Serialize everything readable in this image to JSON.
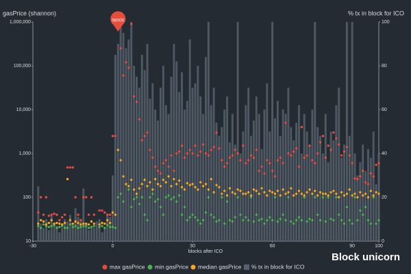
{
  "chart_data": {
    "type": "bar_scatter",
    "y_label": "gasPrice (shannon)",
    "y2_label": "% tx in block for ICO",
    "x_label": "blocks after ICO",
    "watermark": "Block unicorn",
    "annotation": {
      "text": "58000",
      "x": 2,
      "y": 1000000
    },
    "log_y": true,
    "xlim": [
      -30,
      100
    ],
    "xticks": [
      -30,
      0,
      30,
      60,
      90,
      100
    ],
    "ylim": [
      10,
      1000000
    ],
    "yticks": [
      10,
      100,
      {
        "value": 1000,
        "label": "1,000"
      },
      {
        "value": 10000,
        "label": "10,000"
      },
      {
        "value": 100000,
        "label": "100,000"
      },
      {
        "value": 1000000,
        "label": "1,000,000"
      }
    ],
    "y2lim": [
      0,
      100
    ],
    "y2ticks": [
      0,
      20,
      40,
      60,
      80,
      100
    ],
    "x": [
      -30,
      -29,
      -28,
      -27,
      -26,
      -25,
      -24,
      -23,
      -22,
      -21,
      -20,
      -19,
      -18,
      -17,
      -16,
      -15,
      -14,
      -13,
      -12,
      -11,
      -10,
      -9,
      -8,
      -7,
      -6,
      -5,
      -4,
      -3,
      -2,
      -1,
      0,
      1,
      2,
      3,
      4,
      5,
      6,
      7,
      8,
      9,
      10,
      11,
      12,
      13,
      14,
      15,
      16,
      17,
      18,
      19,
      20,
      21,
      22,
      23,
      24,
      25,
      26,
      27,
      28,
      29,
      30,
      31,
      32,
      33,
      34,
      35,
      36,
      37,
      38,
      39,
      40,
      41,
      42,
      43,
      44,
      45,
      46,
      47,
      48,
      49,
      50,
      51,
      52,
      53,
      54,
      55,
      56,
      57,
      58,
      59,
      60,
      61,
      62,
      63,
      64,
      65,
      66,
      67,
      68,
      69,
      70,
      71,
      72,
      73,
      74,
      75,
      76,
      77,
      78,
      79,
      80,
      81,
      82,
      83,
      84,
      85,
      86,
      87,
      88,
      89,
      90,
      91,
      92,
      93,
      94,
      95,
      96,
      97,
      98,
      99,
      100
    ],
    "series": [
      {
        "name": "max gasPrice",
        "color": "#e84c3d",
        "kind": "scatter",
        "values": [
          null,
          null,
          45,
          100,
          40,
          100,
          38,
          40,
          42,
          40,
          30,
          35,
          40,
          480,
          480,
          480,
          100,
          40,
          30,
          100,
          100,
          40,
          100,
          40,
          null,
          50,
          50,
          45,
          40,
          40,
          2500,
          2500,
          1000000,
          250000,
          60000,
          120000,
          90000,
          900000,
          20000,
          15000,
          6000,
          2000,
          2500,
          3000,
          1200,
          800,
          500,
          400,
          350,
          600,
          700,
          500,
          900,
          400,
          1000,
          1100,
          1500,
          800,
          1000,
          1200,
          1000,
          1500,
          900,
          1100,
          1600,
          1000,
          900,
          1200,
          1400,
          3000,
          1300,
          700,
          500,
          600,
          800,
          900,
          1200,
          1000,
          700,
          1500,
          600,
          700,
          900,
          800,
          1200,
          400,
          500,
          350,
          700,
          600,
          400,
          300,
          700,
          800,
          600,
          5000,
          1000,
          900,
          1100,
          1300,
          500,
          4000,
          800,
          900,
          1500,
          700,
          600,
          1000,
          1800,
          2500,
          800,
          1500,
          1200,
          3000,
          2200,
          1600,
          900,
          1100,
          1400,
          900,
          600,
          270,
          260,
          300,
          400,
          220,
          200,
          350,
          300,
          550,
          600
        ]
      },
      {
        "name": "min gasPrice",
        "color": "#4caf50",
        "kind": "scatter",
        "values": [
          null,
          null,
          22,
          20,
          24,
          22,
          21,
          22,
          23,
          20,
          21,
          22,
          20,
          20,
          24,
          21,
          22,
          20,
          21,
          22,
          22,
          20,
          21,
          22,
          null,
          21,
          22,
          20,
          23,
          21,
          21,
          20,
          100,
          120,
          80,
          200,
          150,
          60,
          90,
          100,
          70,
          100,
          40,
          30,
          100,
          120,
          80,
          90,
          60,
          40,
          100,
          110,
          90,
          100,
          80,
          110,
          40,
          60,
          30,
          35,
          40,
          35,
          30,
          25,
          30,
          45,
          100,
          40,
          35,
          28,
          30,
          100,
          25,
          80,
          30,
          28,
          35,
          100,
          40,
          30,
          35,
          30,
          100,
          28,
          40,
          30,
          32,
          25,
          30,
          35,
          30,
          100,
          28,
          32,
          40,
          30,
          100,
          28,
          25,
          30,
          35,
          30,
          100,
          28,
          32,
          30,
          100,
          40,
          30,
          100,
          28,
          100,
          32,
          30,
          100,
          40,
          30,
          25,
          60,
          30,
          25,
          100,
          30,
          50,
          40,
          60,
          30,
          25,
          100,
          25,
          30
        ]
      },
      {
        "name": "median gasPrice",
        "color": "#f5a623",
        "kind": "scatter",
        "values": [
          null,
          null,
          25,
          30,
          28,
          24,
          26,
          30,
          25,
          26,
          25,
          24,
          26,
          260,
          30,
          25,
          28,
          26,
          24,
          25,
          25,
          24,
          28,
          25,
          null,
          24,
          26,
          25,
          30,
          26,
          45,
          40,
          1200,
          700,
          300,
          200,
          180,
          250,
          150,
          120,
          160,
          200,
          250,
          180,
          220,
          150,
          260,
          200,
          180,
          250,
          220,
          300,
          180,
          260,
          200,
          240,
          170,
          150,
          210,
          190,
          200,
          170,
          150,
          220,
          180,
          200,
          150,
          260,
          130,
          190,
          170,
          120,
          140,
          110,
          160,
          130,
          120,
          150,
          140,
          120,
          120,
          130,
          110,
          150,
          140,
          120,
          160,
          130,
          110,
          140,
          130,
          120,
          140,
          110,
          150,
          120,
          130,
          160,
          110,
          120,
          140,
          120,
          110,
          130,
          150,
          120,
          140,
          110,
          130,
          120,
          120,
          110,
          130,
          140,
          120,
          100,
          130,
          110,
          120,
          150,
          110,
          120,
          100,
          130,
          110,
          120,
          100,
          140,
          110,
          130,
          120
        ]
      },
      {
        "name": "% tx in block for ICO",
        "color": "#56616d",
        "kind": "bar",
        "axis": "y2",
        "values": [
          0,
          0,
          25,
          8,
          6,
          10,
          5,
          12,
          8,
          7,
          4,
          6,
          10,
          9,
          12,
          8,
          15,
          11,
          9,
          24,
          8,
          5,
          7,
          6,
          9,
          10,
          4,
          6,
          12,
          11,
          30,
          85,
          90,
          100,
          95,
          88,
          92,
          100,
          80,
          75,
          70,
          85,
          78,
          90,
          65,
          72,
          60,
          55,
          70,
          80,
          62,
          58,
          75,
          90,
          82,
          68,
          77,
          60,
          64,
          92,
          70,
          72,
          80,
          66,
          58,
          84,
          100,
          62,
          70,
          54,
          48,
          52,
          60,
          66,
          45,
          58,
          44,
          100,
          40,
          50,
          62,
          70,
          48,
          55,
          66,
          58,
          42,
          60,
          72,
          50,
          100,
          56,
          64,
          48,
          60,
          58,
          70,
          52,
          46,
          54,
          62,
          40,
          58,
          50,
          44,
          60,
          100,
          52,
          48,
          40,
          58,
          36,
          50,
          46,
          62,
          70,
          38,
          44,
          100,
          48,
          100,
          40,
          30,
          36,
          44,
          32,
          42,
          38,
          50,
          26,
          40
        ]
      }
    ]
  }
}
